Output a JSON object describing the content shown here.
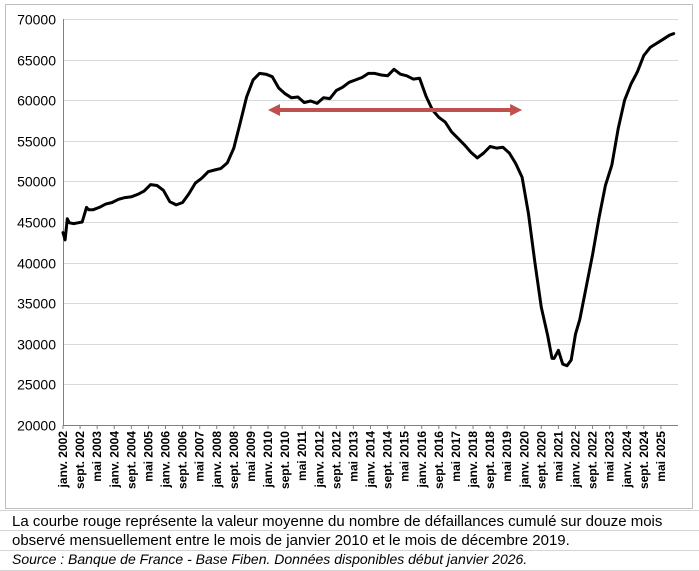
{
  "caption": "La courbe rouge représente la valeur moyenne du nombre de défaillances cumulé sur douze mois observé mensuellement entre le mois de janvier 2010 et le mois de décembre 2019.",
  "source": "Source : Banque de France - Base Fiben. Données disponibles début janvier 2026.",
  "colors": {
    "line": "#000000",
    "arrow": "#c0504d",
    "grid": "#d9d9d9",
    "axis": "#808080"
  },
  "chart_data": {
    "type": "line",
    "title": "",
    "xlabel": "",
    "ylabel": "",
    "ylim": [
      20000,
      70000
    ],
    "y_ticks": [
      20000,
      25000,
      30000,
      35000,
      40000,
      45000,
      50000,
      55000,
      60000,
      65000,
      70000
    ],
    "x_range": [
      "2002-01",
      "2025-12"
    ],
    "grid": "horizontal",
    "legend": "none",
    "x_tick_labels": [
      "janv. 2002",
      "sept. 2002",
      "mai 2003",
      "janv. 2004",
      "sept. 2004",
      "mai 2005",
      "janv. 2006",
      "sept. 2006",
      "mai 2007",
      "janv. 2008",
      "sept. 2008",
      "mai 2009",
      "janv. 2010",
      "sept. 2010",
      "mai 2011",
      "janv. 2012",
      "sept. 2012",
      "mai 2013",
      "janv. 2014",
      "sept. 2014",
      "mai 2015",
      "janv. 2016",
      "sept. 2016",
      "mai 2017",
      "janv. 2018",
      "sept. 2018",
      "mai 2019",
      "janv. 2020",
      "sept. 2020",
      "mai 2021",
      "janv. 2022",
      "sept. 2022",
      "mai 2023",
      "janv. 2024",
      "sept. 2024",
      "mai 2025"
    ],
    "series": [
      {
        "x": [
          "2002-01",
          "2002-02",
          "2002-03",
          "2002-04",
          "2002-06",
          "2002-08",
          "2002-10",
          "2002-12",
          "2003-01",
          "2003-03",
          "2003-06",
          "2003-09",
          "2003-12",
          "2004-03",
          "2004-06",
          "2004-09",
          "2004-12",
          "2005-03",
          "2005-06",
          "2005-09",
          "2005-12",
          "2006-03",
          "2006-06",
          "2006-09",
          "2006-12",
          "2007-03",
          "2007-06",
          "2007-09",
          "2007-12",
          "2008-03",
          "2008-06",
          "2008-09",
          "2008-12",
          "2009-03",
          "2009-06",
          "2009-09",
          "2009-12",
          "2010-03",
          "2010-06",
          "2010-09",
          "2010-12",
          "2011-03",
          "2011-06",
          "2011-09",
          "2011-12",
          "2012-03",
          "2012-06",
          "2012-09",
          "2012-12",
          "2013-03",
          "2013-06",
          "2013-09",
          "2013-12",
          "2014-03",
          "2014-06",
          "2014-09",
          "2014-12",
          "2015-03",
          "2015-06",
          "2015-09",
          "2015-12",
          "2016-03",
          "2016-06",
          "2016-09",
          "2016-12",
          "2017-03",
          "2017-06",
          "2017-09",
          "2017-12",
          "2018-03",
          "2018-06",
          "2018-09",
          "2018-12",
          "2019-03",
          "2019-06",
          "2019-09",
          "2019-12",
          "2020-03",
          "2020-06",
          "2020-09",
          "2020-12",
          "2021-02",
          "2021-03",
          "2021-05",
          "2021-07",
          "2021-09",
          "2021-11",
          "2022-01",
          "2022-03",
          "2022-06",
          "2022-09",
          "2022-12",
          "2023-03",
          "2023-06",
          "2023-09",
          "2023-12",
          "2024-03",
          "2024-06",
          "2024-09",
          "2024-12",
          "2025-03",
          "2025-06",
          "2025-09",
          "2025-11"
        ],
        "values": [
          43700,
          42800,
          45400,
          44900,
          44800,
          44900,
          45000,
          46800,
          46500,
          46500,
          46800,
          47200,
          47400,
          47800,
          48000,
          48100,
          48400,
          48800,
          49600,
          49500,
          48900,
          47500,
          47100,
          47400,
          48500,
          49800,
          50400,
          51200,
          51400,
          51600,
          52300,
          54100,
          57200,
          60400,
          62500,
          63300,
          63200,
          62900,
          61500,
          60800,
          60300,
          60400,
          59700,
          59900,
          59600,
          60300,
          60200,
          61200,
          61600,
          62200,
          62500,
          62800,
          63300,
          63300,
          63100,
          63000,
          63800,
          63200,
          63000,
          62600,
          62700,
          60500,
          58800,
          57900,
          57300,
          56100,
          55300,
          54500,
          53600,
          52900,
          53500,
          54300,
          54100,
          54200,
          53500,
          52200,
          50500,
          46000,
          40000,
          34500,
          31000,
          28200,
          28200,
          29200,
          27500,
          27300,
          28000,
          31200,
          33000,
          37000,
          41000,
          45500,
          49500,
          52000,
          56500,
          60000,
          62000,
          63500,
          65500,
          66500,
          67000,
          67500,
          68000,
          68200
        ]
      }
    ],
    "annotation": {
      "type": "double-arrow",
      "from": "2010-01",
      "to": "2019-12",
      "value": 58800
    }
  }
}
